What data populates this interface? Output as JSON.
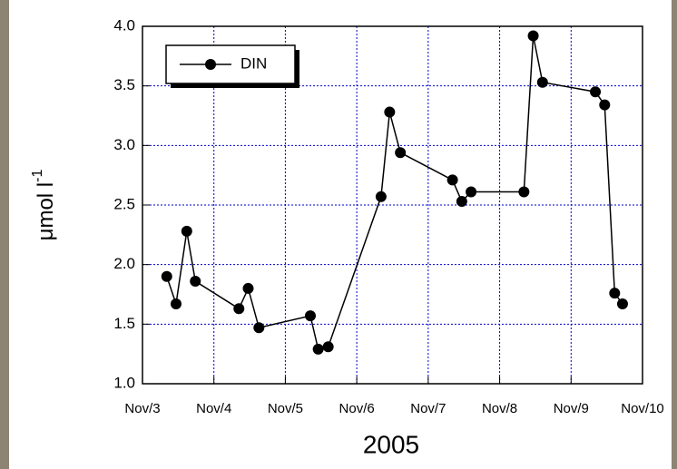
{
  "chart_data": {
    "type": "line",
    "xlabel": "2005",
    "ylabel": "μmol l",
    "ylabel_sup": "-1",
    "x": [
      3.34,
      3.47,
      3.62,
      3.74,
      4.35,
      4.48,
      4.63,
      5.35,
      5.46,
      5.6,
      6.34,
      6.46,
      6.61,
      7.34,
      7.47,
      7.6,
      8.34,
      8.47,
      8.6,
      9.34,
      9.47,
      9.61,
      9.72
    ],
    "series": [
      {
        "name": "DIN",
        "color": "#000000",
        "values": [
          1.9,
          1.67,
          2.28,
          1.86,
          1.63,
          1.8,
          1.47,
          1.57,
          1.29,
          1.31,
          2.57,
          3.28,
          2.94,
          2.71,
          2.53,
          2.61,
          2.61,
          3.92,
          3.53,
          3.45,
          3.34,
          1.76,
          1.67
        ]
      }
    ],
    "xlim": [
      3,
      10
    ],
    "xticks": [
      {
        "value": 3,
        "label": "Nov/3"
      },
      {
        "value": 4,
        "label": "Nov/4"
      },
      {
        "value": 5,
        "label": "Nov/5"
      },
      {
        "value": 6,
        "label": "Nov/6"
      },
      {
        "value": 7,
        "label": "Nov/7"
      },
      {
        "value": 8,
        "label": "Nov/8"
      },
      {
        "value": 9,
        "label": "Nov/9"
      },
      {
        "value": 10,
        "label": "Nov/10"
      }
    ],
    "ylim": [
      1,
      4
    ],
    "yticks": [
      {
        "value": 1,
        "label": "1.0"
      },
      {
        "value": 1.5,
        "label": "1.5"
      },
      {
        "value": 2,
        "label": "2.0"
      },
      {
        "value": 2.5,
        "label": "2.5"
      },
      {
        "value": 3,
        "label": "3.0"
      },
      {
        "value": 3.5,
        "label": "3.5"
      },
      {
        "value": 4,
        "label": "4.0"
      }
    ],
    "grid": true,
    "grid_color": "#0000cc",
    "legend": "upper left"
  }
}
